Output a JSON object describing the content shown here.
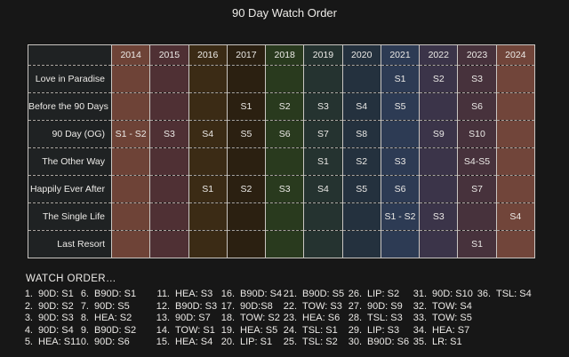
{
  "title": "90 Day Watch Order",
  "colors": {
    "background": "#171717",
    "label_cell_bg": "#1f2223",
    "grid_line": "#c9c5c1",
    "text": "#eceae7"
  },
  "chart_data": {
    "type": "table",
    "title": "90 Day Watch Order",
    "columns": [
      "2014",
      "2015",
      "2016",
      "2017",
      "2018",
      "2019",
      "2020",
      "2021",
      "2022",
      "2023",
      "2024"
    ],
    "column_colors": [
      "#6e4337",
      "#4f3034",
      "#3b2b15",
      "#2b2011",
      "#293a1e",
      "#253330",
      "#24313e",
      "#2d3b54",
      "#3b3449",
      "#47323c",
      "#71453a"
    ],
    "rows": [
      {
        "label": "Love in Paradise",
        "cells": [
          "",
          "",
          "",
          "",
          "",
          "",
          "",
          "S1",
          "S2",
          "S3",
          ""
        ]
      },
      {
        "label": "Before the 90 Days",
        "cells": [
          "",
          "",
          "",
          "S1",
          "S2",
          "S3",
          "S4",
          "S5",
          "",
          "S6",
          ""
        ]
      },
      {
        "label": "90 Day (OG)",
        "cells": [
          "S1 - S2",
          "S3",
          "S4",
          "S5",
          "S6",
          "S7",
          "S8",
          "",
          "S9",
          "S10",
          ""
        ]
      },
      {
        "label": "The Other Way",
        "cells": [
          "",
          "",
          "",
          "",
          "",
          "S1",
          "S2",
          "S3",
          "",
          "S4-S5",
          ""
        ]
      },
      {
        "label": "Happily Ever After",
        "cells": [
          "",
          "",
          "S1",
          "S2",
          "S3",
          "S4",
          "S5",
          "S6",
          "",
          "S7",
          ""
        ]
      },
      {
        "label": "The Single Life",
        "cells": [
          "",
          "",
          "",
          "",
          "",
          "",
          "",
          "S1 - S2",
          "S3",
          "",
          "S4"
        ]
      },
      {
        "label": "Last Resort",
        "cells": [
          "",
          "",
          "",
          "",
          "",
          "",
          "",
          "",
          "",
          "S1",
          ""
        ]
      }
    ]
  },
  "watch_order": {
    "heading": "WATCH ORDER…",
    "columns": [
      {
        "start": 1,
        "items": [
          "90D: S1",
          "90D: S2",
          "90D: S3",
          "90D: S4",
          "HEA: S1"
        ]
      },
      {
        "start": 6,
        "items": [
          "B90D: S1",
          "90D: S5",
          "HEA: S2",
          "B90D: S2",
          "90D: S6"
        ]
      },
      {
        "start": 11,
        "items": [
          "HEA: S3",
          "B90D: S3",
          "90D: S7",
          "TOW: S1",
          "HEA: S4"
        ]
      },
      {
        "start": 16,
        "items": [
          "B90D: S4",
          "90D:S8",
          "TOW: S2",
          "HEA: S5",
          "LIP: S1"
        ]
      },
      {
        "start": 21,
        "items": [
          "B90D: S5",
          "TOW: S3",
          "HEA: S6",
          "TSL: S1",
          "TSL: S2"
        ]
      },
      {
        "start": 26,
        "items": [
          "LIP: S2",
          "90D: S9",
          "TSL: S3",
          "LIP: S3",
          "B90D: S6"
        ]
      },
      {
        "start": 31,
        "items": [
          "90D: S10",
          "TOW: S4",
          "TOW: S5",
          "HEA: S7",
          "LR: S1"
        ]
      },
      {
        "start": 36,
        "items": [
          "TSL: S4"
        ]
      }
    ]
  }
}
